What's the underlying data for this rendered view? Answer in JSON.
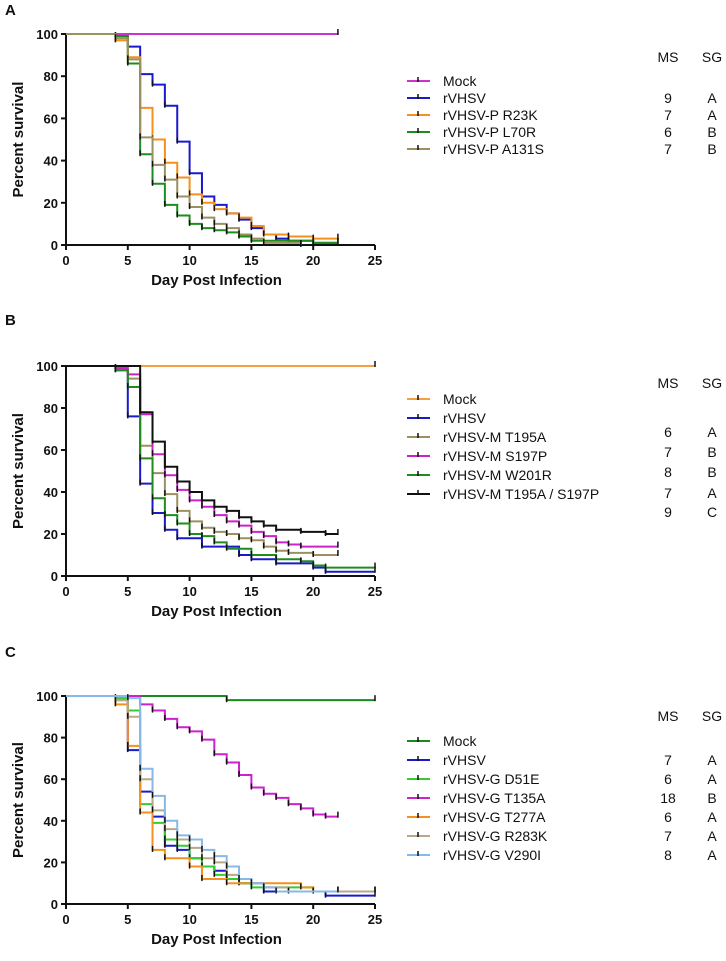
{
  "chart_data": [
    {
      "type": "line",
      "panel": "A",
      "xlabel": "Day Post Infection",
      "ylabel": "Percent survival",
      "xlim": [
        0,
        25
      ],
      "ylim": [
        0,
        100
      ],
      "xticks": [
        0,
        5,
        10,
        15,
        20,
        25
      ],
      "yticks": [
        0,
        20,
        40,
        60,
        80,
        100
      ],
      "table_headers": [
        "MS",
        "SG"
      ],
      "series": [
        {
          "name": "Mock",
          "color": "#cc33cc",
          "ms": "",
          "sg": "",
          "end": 22,
          "steps": []
        },
        {
          "name": "rVHSV",
          "color": "#1a1acc",
          "ms": "9",
          "sg": "A",
          "end": 22,
          "steps": [
            [
              4,
              99
            ],
            [
              5,
              94
            ],
            [
              6,
              81
            ],
            [
              7,
              76
            ],
            [
              8,
              66
            ],
            [
              9,
              49
            ],
            [
              10,
              34
            ],
            [
              11,
              23
            ],
            [
              12,
              19
            ],
            [
              13,
              15
            ],
            [
              14,
              12
            ],
            [
              15,
              8
            ],
            [
              16,
              5
            ],
            [
              17,
              3
            ],
            [
              18,
              2
            ],
            [
              20,
              1
            ]
          ]
        },
        {
          "name": "rVHSV-P R23K",
          "color": "#f5901e",
          "ms": "7",
          "sg": "A",
          "end": 22,
          "steps": [
            [
              4,
              97
            ],
            [
              5,
              89
            ],
            [
              6,
              65
            ],
            [
              7,
              50
            ],
            [
              8,
              39
            ],
            [
              9,
              32
            ],
            [
              10,
              24
            ],
            [
              11,
              20
            ],
            [
              12,
              17
            ],
            [
              13,
              15
            ],
            [
              14,
              13
            ],
            [
              15,
              9
            ],
            [
              16,
              5
            ],
            [
              18,
              4
            ],
            [
              20,
              3
            ]
          ]
        },
        {
          "name": "rVHSV-P L70R",
          "color": "#1e8c1e",
          "ms": "6",
          "sg": "B",
          "end": 22,
          "steps": [
            [
              4,
              99
            ],
            [
              5,
              86
            ],
            [
              6,
              43
            ],
            [
              7,
              29
            ],
            [
              8,
              19
            ],
            [
              9,
              14
            ],
            [
              10,
              10
            ],
            [
              11,
              8
            ],
            [
              12,
              7
            ],
            [
              13,
              6
            ],
            [
              14,
              4
            ],
            [
              15,
              2
            ],
            [
              20,
              1
            ]
          ]
        },
        {
          "name": "rVHSV-P A131S",
          "color": "#9c9060",
          "ms": "7",
          "sg": "B",
          "end": 19,
          "steps": [
            [
              4,
              98
            ],
            [
              5,
              88
            ],
            [
              6,
              51
            ],
            [
              7,
              38
            ],
            [
              8,
              31
            ],
            [
              9,
              23
            ],
            [
              10,
              18
            ],
            [
              11,
              13
            ],
            [
              12,
              10
            ],
            [
              13,
              8
            ],
            [
              14,
              5
            ],
            [
              15,
              3
            ],
            [
              16,
              1
            ],
            [
              19,
              0
            ]
          ]
        }
      ]
    },
    {
      "type": "line",
      "panel": "B",
      "xlabel": "Day Post Infection",
      "ylabel": "Percent survival",
      "xlim": [
        0,
        25
      ],
      "ylim": [
        0,
        100
      ],
      "xticks": [
        0,
        5,
        10,
        15,
        20,
        25
      ],
      "yticks": [
        0,
        20,
        40,
        60,
        80,
        100
      ],
      "table_headers": [
        "MS",
        "SG"
      ],
      "series": [
        {
          "name": "Mock",
          "color": "#f5a040",
          "ms": "",
          "sg": "",
          "end": 25,
          "steps": []
        },
        {
          "name": "rVHSV",
          "color": "#1a1acc",
          "ms": "6",
          "sg": "A",
          "end": 25,
          "steps": [
            [
              4,
              98
            ],
            [
              5,
              76
            ],
            [
              6,
              44
            ],
            [
              7,
              30
            ],
            [
              8,
              22
            ],
            [
              9,
              18
            ],
            [
              11,
              14
            ],
            [
              14,
              10
            ],
            [
              15,
              8
            ],
            [
              17,
              6
            ],
            [
              20,
              4
            ],
            [
              21,
              2
            ]
          ]
        },
        {
          "name": "rVHSV-M T195A",
          "color": "#9c9060",
          "ms": "7",
          "sg": "B",
          "end": 22,
          "steps": [
            [
              4,
              99
            ],
            [
              5,
              94
            ],
            [
              6,
              62
            ],
            [
              7,
              49
            ],
            [
              8,
              39
            ],
            [
              9,
              31
            ],
            [
              10,
              26
            ],
            [
              11,
              23
            ],
            [
              12,
              21
            ],
            [
              13,
              20
            ],
            [
              14,
              18
            ],
            [
              15,
              17
            ],
            [
              16,
              14
            ],
            [
              17,
              12
            ],
            [
              18,
              11
            ],
            [
              20,
              10
            ]
          ]
        },
        {
          "name": "rVHSV-M S197P",
          "color": "#cc22cc",
          "ms": "8",
          "sg": "B",
          "end": 22,
          "steps": [
            [
              4,
              99
            ],
            [
              5,
              96
            ],
            [
              6,
              77
            ],
            [
              7,
              58
            ],
            [
              8,
              48
            ],
            [
              9,
              41
            ],
            [
              10,
              36
            ],
            [
              11,
              33
            ],
            [
              12,
              29
            ],
            [
              13,
              26
            ],
            [
              14,
              24
            ],
            [
              15,
              21
            ],
            [
              16,
              19
            ],
            [
              17,
              16
            ],
            [
              18,
              15
            ],
            [
              19,
              14
            ]
          ]
        },
        {
          "name": "rVHSV-M W201R",
          "color": "#1e8c1e",
          "ms": "7",
          "sg": "A",
          "end": 25,
          "steps": [
            [
              4,
              98
            ],
            [
              5,
              90
            ],
            [
              6,
              56
            ],
            [
              7,
              37
            ],
            [
              8,
              29
            ],
            [
              9,
              25
            ],
            [
              10,
              20
            ],
            [
              11,
              19
            ],
            [
              12,
              16
            ],
            [
              13,
              13
            ],
            [
              15,
              10
            ],
            [
              17,
              8
            ],
            [
              19,
              7
            ],
            [
              20,
              5
            ],
            [
              21,
              4
            ]
          ]
        },
        {
          "name": "rVHSV-M T195A / S197P",
          "color": "#111111",
          "ms": "9",
          "sg": "C",
          "end": 22,
          "steps": [
            [
              6,
              78
            ],
            [
              7,
              64
            ],
            [
              8,
              52
            ],
            [
              9,
              45
            ],
            [
              10,
              40
            ],
            [
              11,
              36
            ],
            [
              12,
              33
            ],
            [
              13,
              31
            ],
            [
              14,
              28
            ],
            [
              15,
              26
            ],
            [
              16,
              24
            ],
            [
              17,
              22
            ],
            [
              19,
              21
            ],
            [
              21,
              20
            ]
          ]
        }
      ]
    },
    {
      "type": "line",
      "panel": "C",
      "xlabel": "Day Post Infection",
      "ylabel": "Percent survival",
      "xlim": [
        0,
        25
      ],
      "ylim": [
        0,
        100
      ],
      "xticks": [
        0,
        5,
        10,
        15,
        20,
        25
      ],
      "yticks": [
        0,
        20,
        40,
        60,
        80,
        100
      ],
      "table_headers": [
        "MS",
        "SG"
      ],
      "series": [
        {
          "name": "Mock",
          "color": "#1a8a1a",
          "ms": "",
          "sg": "",
          "end": 25,
          "steps": [
            [
              13,
              98
            ]
          ]
        },
        {
          "name": "rVHSV",
          "color": "#1a1acc",
          "ms": "7",
          "sg": "A",
          "end": 25,
          "steps": [
            [
              4,
              98
            ],
            [
              5,
              74
            ],
            [
              6,
              54
            ],
            [
              7,
              42
            ],
            [
              8,
              28
            ],
            [
              9,
              26
            ],
            [
              10,
              22
            ],
            [
              11,
              18
            ],
            [
              12,
              16
            ],
            [
              13,
              12
            ],
            [
              14,
              10
            ],
            [
              16,
              6
            ],
            [
              21,
              4
            ]
          ]
        },
        {
          "name": "rVHSV-G D51E",
          "color": "#33cc33",
          "ms": "6",
          "sg": "A",
          "end": 22,
          "steps": [
            [
              4,
              99
            ],
            [
              5,
              93
            ],
            [
              6,
              48
            ],
            [
              7,
              39
            ],
            [
              8,
              31
            ],
            [
              9,
              28
            ],
            [
              10,
              22
            ],
            [
              11,
              18
            ],
            [
              12,
              14
            ],
            [
              13,
              12
            ],
            [
              14,
              10
            ],
            [
              15,
              8
            ],
            [
              20,
              6
            ]
          ]
        },
        {
          "name": "rVHSV-G T135A",
          "color": "#cc22cc",
          "ms": "18",
          "sg": "B",
          "end": 22,
          "steps": [
            [
              6,
              96
            ],
            [
              7,
              93
            ],
            [
              8,
              89
            ],
            [
              9,
              85
            ],
            [
              10,
              83
            ],
            [
              11,
              79
            ],
            [
              12,
              72
            ],
            [
              13,
              68
            ],
            [
              14,
              62
            ],
            [
              15,
              56
            ],
            [
              16,
              53
            ],
            [
              17,
              51
            ],
            [
              18,
              48
            ],
            [
              19,
              46
            ],
            [
              20,
              43
            ],
            [
              21,
              42
            ]
          ]
        },
        {
          "name": "rVHSV-G T277A",
          "color": "#f5901e",
          "ms": "6",
          "sg": "A",
          "end": 25,
          "steps": [
            [
              4,
              96
            ],
            [
              5,
              76
            ],
            [
              6,
              44
            ],
            [
              7,
              26
            ],
            [
              8,
              22
            ],
            [
              10,
              18
            ],
            [
              11,
              12
            ],
            [
              13,
              10
            ],
            [
              19,
              8
            ],
            [
              20,
              6
            ]
          ]
        },
        {
          "name": "rVHSV-G R283K",
          "color": "#b8a888",
          "ms": "7",
          "sg": "A",
          "end": 25,
          "steps": [
            [
              4,
              98
            ],
            [
              5,
              90
            ],
            [
              6,
              60
            ],
            [
              7,
              45
            ],
            [
              8,
              36
            ],
            [
              9,
              31
            ],
            [
              10,
              27
            ],
            [
              11,
              22
            ],
            [
              12,
              20
            ],
            [
              13,
              14
            ],
            [
              14,
              12
            ],
            [
              15,
              10
            ],
            [
              16,
              8
            ],
            [
              18,
              6
            ]
          ]
        },
        {
          "name": "rVHSV-G V290I",
          "color": "#88b8e8",
          "ms": "8",
          "sg": "A",
          "end": 22,
          "steps": [
            [
              5,
              99
            ],
            [
              6,
              65
            ],
            [
              7,
              52
            ],
            [
              8,
              40
            ],
            [
              9,
              33
            ],
            [
              10,
              31
            ],
            [
              11,
              26
            ],
            [
              12,
              23
            ],
            [
              13,
              18
            ],
            [
              14,
              12
            ],
            [
              15,
              10
            ],
            [
              16,
              8
            ],
            [
              17,
              6
            ]
          ]
        }
      ]
    }
  ]
}
